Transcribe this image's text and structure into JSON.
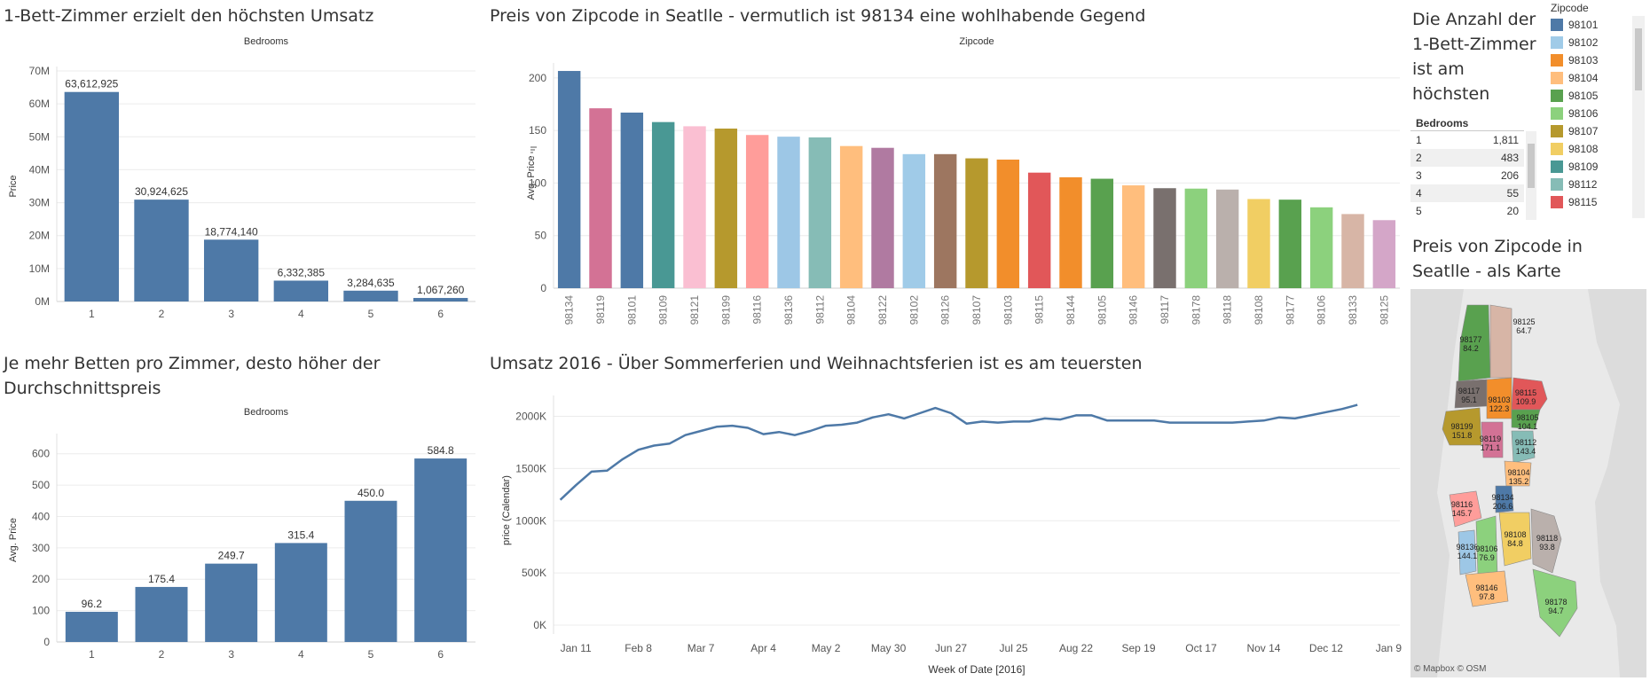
{
  "titles": {
    "revenue": "1-Bett-Zimmer erzielt den höchsten Umsatz",
    "zip_price": "Preis von Zipcode in Seatlle - vermutlich ist 98134 eine wohlhabende Gegend",
    "avg_price": "Je mehr Betten pro Zimmer, desto höher der Durchschnittspreis",
    "umsatz": "Umsatz 2016 - Über Sommerferien und Weihnachtsferien ist es am teuersten",
    "count": "Die Anzahl der 1-Bett-Zimmer ist am höchsten",
    "map": "Preis von Zipcode in Seatlle - als Karte"
  },
  "bedrooms_table": {
    "header": "Bedrooms",
    "rows": [
      {
        "k": "1",
        "v": "1,811"
      },
      {
        "k": "2",
        "v": "483"
      },
      {
        "k": "3",
        "v": "206"
      },
      {
        "k": "4",
        "v": "55"
      },
      {
        "k": "5",
        "v": "20"
      }
    ]
  },
  "legend": {
    "title": "Zipcode",
    "items": [
      {
        "label": "98101",
        "color": "#4e79a7"
      },
      {
        "label": "98102",
        "color": "#a0cbe8"
      },
      {
        "label": "98103",
        "color": "#f28e2b"
      },
      {
        "label": "98104",
        "color": "#ffbe7d"
      },
      {
        "label": "98105",
        "color": "#59a14f"
      },
      {
        "label": "98106",
        "color": "#8cd17d"
      },
      {
        "label": "98107",
        "color": "#b6992d"
      },
      {
        "label": "98108",
        "color": "#f1ce63"
      },
      {
        "label": "98109",
        "color": "#499894"
      },
      {
        "label": "98112",
        "color": "#86bcb6"
      },
      {
        "label": "98115",
        "color": "#e15759"
      }
    ]
  },
  "map": {
    "attribution": "© Mapbox  © OSM",
    "regions": [
      {
        "zip": "98177",
        "value": "84.2",
        "color": "#59a14f"
      },
      {
        "zip": "98125",
        "value": "64.7",
        "color": "#d7b5a6"
      },
      {
        "zip": "98117",
        "value": "95.1",
        "color": "#79706e"
      },
      {
        "zip": "98115",
        "value": "109.9",
        "color": "#e15759"
      },
      {
        "zip": "98103",
        "value": "122.3",
        "color": "#f28e2b"
      },
      {
        "zip": "98105",
        "value": "104.1",
        "color": "#59a14f"
      },
      {
        "zip": "98199",
        "value": "151.8",
        "color": "#b6992d"
      },
      {
        "zip": "98119",
        "value": "171.1",
        "color": "#d37295"
      },
      {
        "zip": "98112",
        "value": "143.4",
        "color": "#86bcb6"
      },
      {
        "zip": "98104",
        "value": "135.2",
        "color": "#ffbe7d"
      },
      {
        "zip": "98134",
        "value": "206.6",
        "color": "#4e79a7"
      },
      {
        "zip": "98116",
        "value": "145.7",
        "color": "#ff9d9a"
      },
      {
        "zip": "98136",
        "value": "144.1",
        "color": "#9dc7e6"
      },
      {
        "zip": "98106",
        "value": "76.9",
        "color": "#8cd17d"
      },
      {
        "zip": "98108",
        "value": "84.8",
        "color": "#f1ce63"
      },
      {
        "zip": "98118",
        "value": "93.8",
        "color": "#bab0ac"
      },
      {
        "zip": "98146",
        "value": "97.8",
        "color": "#ffbe7d"
      },
      {
        "zip": "98178",
        "value": "94.7",
        "color": "#8cd17d"
      }
    ]
  },
  "chart_data": [
    {
      "id": "revenue",
      "type": "bar",
      "header": "Bedrooms",
      "ylabel": "Price",
      "categories": [
        "1",
        "2",
        "3",
        "4",
        "5",
        "6"
      ],
      "values": [
        63612925,
        30924625,
        18774140,
        6332385,
        3284635,
        1067260
      ],
      "data_labels": [
        "63,612,925",
        "30,924,625",
        "18,774,140",
        "6,332,385",
        "3,284,635",
        "1,067,260"
      ],
      "ylim": [
        0,
        70000000
      ],
      "yticks": [
        0,
        10000000,
        20000000,
        30000000,
        40000000,
        50000000,
        60000000,
        70000000
      ],
      "ytick_labels": [
        "0M",
        "10M",
        "20M",
        "30M",
        "40M",
        "50M",
        "60M",
        "70M"
      ],
      "color": "#4e79a7"
    },
    {
      "id": "zip_price",
      "type": "bar",
      "header": "Zipcode",
      "ylabel": "Avg. Price",
      "categories": [
        "98134",
        "98119",
        "98101",
        "98109",
        "98121",
        "98199",
        "98116",
        "98136",
        "98112",
        "98104",
        "98122",
        "98102",
        "98126",
        "98107",
        "98103",
        "98115",
        "98144",
        "98105",
        "98146",
        "98117",
        "98178",
        "98118",
        "98108",
        "98177",
        "98106",
        "98133",
        "98125"
      ],
      "values": [
        206.6,
        171.1,
        167,
        158,
        154,
        151.8,
        145.7,
        144.1,
        143.4,
        135.2,
        133.5,
        127.5,
        127.5,
        123.5,
        122.3,
        109.9,
        105.5,
        104.1,
        97.8,
        95.1,
        94.7,
        93.8,
        84.8,
        84.2,
        76.9,
        70.5,
        64.7
      ],
      "colors": [
        "#4e79a7",
        "#d37295",
        "#4e79a7",
        "#499894",
        "#fabfd2",
        "#b6992d",
        "#ff9d9a",
        "#9dc7e6",
        "#86bcb6",
        "#ffbe7d",
        "#b07aa1",
        "#a0cbe8",
        "#9d7660",
        "#b6992d",
        "#f28e2b",
        "#e15759",
        "#f28e2b",
        "#59a14f",
        "#ffbe7d",
        "#79706e",
        "#8cd17d",
        "#bab0ac",
        "#f1ce63",
        "#59a14f",
        "#8cd17d",
        "#d7b5a6",
        "#d4a6c8"
      ],
      "ylim": [
        0,
        210
      ],
      "yticks": [
        0,
        50,
        100,
        150,
        200
      ],
      "ytick_labels": [
        "0",
        "50",
        "100",
        "150",
        "200"
      ]
    },
    {
      "id": "avg_price",
      "type": "bar",
      "header": "Bedrooms",
      "ylabel": "Avg. Price",
      "categories": [
        "1",
        "2",
        "3",
        "4",
        "5",
        "6"
      ],
      "values": [
        96.2,
        175.4,
        249.7,
        315.4,
        450.0,
        584.8
      ],
      "data_labels": [
        "96.2",
        "175.4",
        "249.7",
        "315.4",
        "450.0",
        "584.8"
      ],
      "ylim": [
        0,
        650
      ],
      "yticks": [
        0,
        100,
        200,
        300,
        400,
        500,
        600
      ],
      "ytick_labels": [
        "0",
        "100",
        "200",
        "300",
        "400",
        "500",
        "600"
      ],
      "color": "#4e79a7"
    },
    {
      "id": "umsatz",
      "type": "line",
      "xlabel": "Week of Date [2016]",
      "ylabel": "price (Calendar)",
      "x": [
        "2016-01-04",
        "2016-01-11",
        "2016-01-18",
        "2016-01-25",
        "2016-02-01",
        "2016-02-08",
        "2016-02-15",
        "2016-02-22",
        "2016-02-29",
        "2016-03-07",
        "2016-03-14",
        "2016-03-21",
        "2016-03-28",
        "2016-04-04",
        "2016-04-11",
        "2016-04-18",
        "2016-04-25",
        "2016-05-02",
        "2016-05-09",
        "2016-05-16",
        "2016-05-23",
        "2016-05-30",
        "2016-06-06",
        "2016-06-13",
        "2016-06-20",
        "2016-06-27",
        "2016-07-04",
        "2016-07-11",
        "2016-07-18",
        "2016-07-25",
        "2016-08-01",
        "2016-08-08",
        "2016-08-15",
        "2016-08-22",
        "2016-08-29",
        "2016-09-05",
        "2016-09-12",
        "2016-09-19",
        "2016-09-26",
        "2016-10-03",
        "2016-10-10",
        "2016-10-17",
        "2016-10-24",
        "2016-10-31",
        "2016-11-07",
        "2016-11-14",
        "2016-11-21",
        "2016-11-28",
        "2016-12-05",
        "2016-12-12",
        "2016-12-19",
        "2016-12-26"
      ],
      "values": [
        1200000,
        1340000,
        1470000,
        1480000,
        1590000,
        1680000,
        1720000,
        1740000,
        1820000,
        1860000,
        1900000,
        1910000,
        1890000,
        1830000,
        1850000,
        1820000,
        1860000,
        1910000,
        1920000,
        1940000,
        1990000,
        2020000,
        1980000,
        2030000,
        2080000,
        2030000,
        1930000,
        1950000,
        1940000,
        1950000,
        1950000,
        1980000,
        1970000,
        2010000,
        2010000,
        1960000,
        1960000,
        1960000,
        1960000,
        1940000,
        1940000,
        1940000,
        1940000,
        1940000,
        1950000,
        1960000,
        1990000,
        1980000,
        2010000,
        2040000,
        2070000,
        2110000
      ],
      "ylim": [
        0,
        2200000
      ],
      "yticks": [
        0,
        500000,
        1000000,
        1500000,
        2000000
      ],
      "ytick_labels": [
        "0K",
        "500K",
        "1000K",
        "1500K",
        "2000K"
      ],
      "xticks": [
        "Jan 11",
        "Feb 8",
        "Mar 7",
        "Apr 4",
        "May 2",
        "May 30",
        "Jun 27",
        "Jul 25",
        "Aug 22",
        "Sep 19",
        "Oct 17",
        "Nov 14",
        "Dec 12",
        "Jan 9"
      ],
      "color": "#4e79a7"
    }
  ]
}
